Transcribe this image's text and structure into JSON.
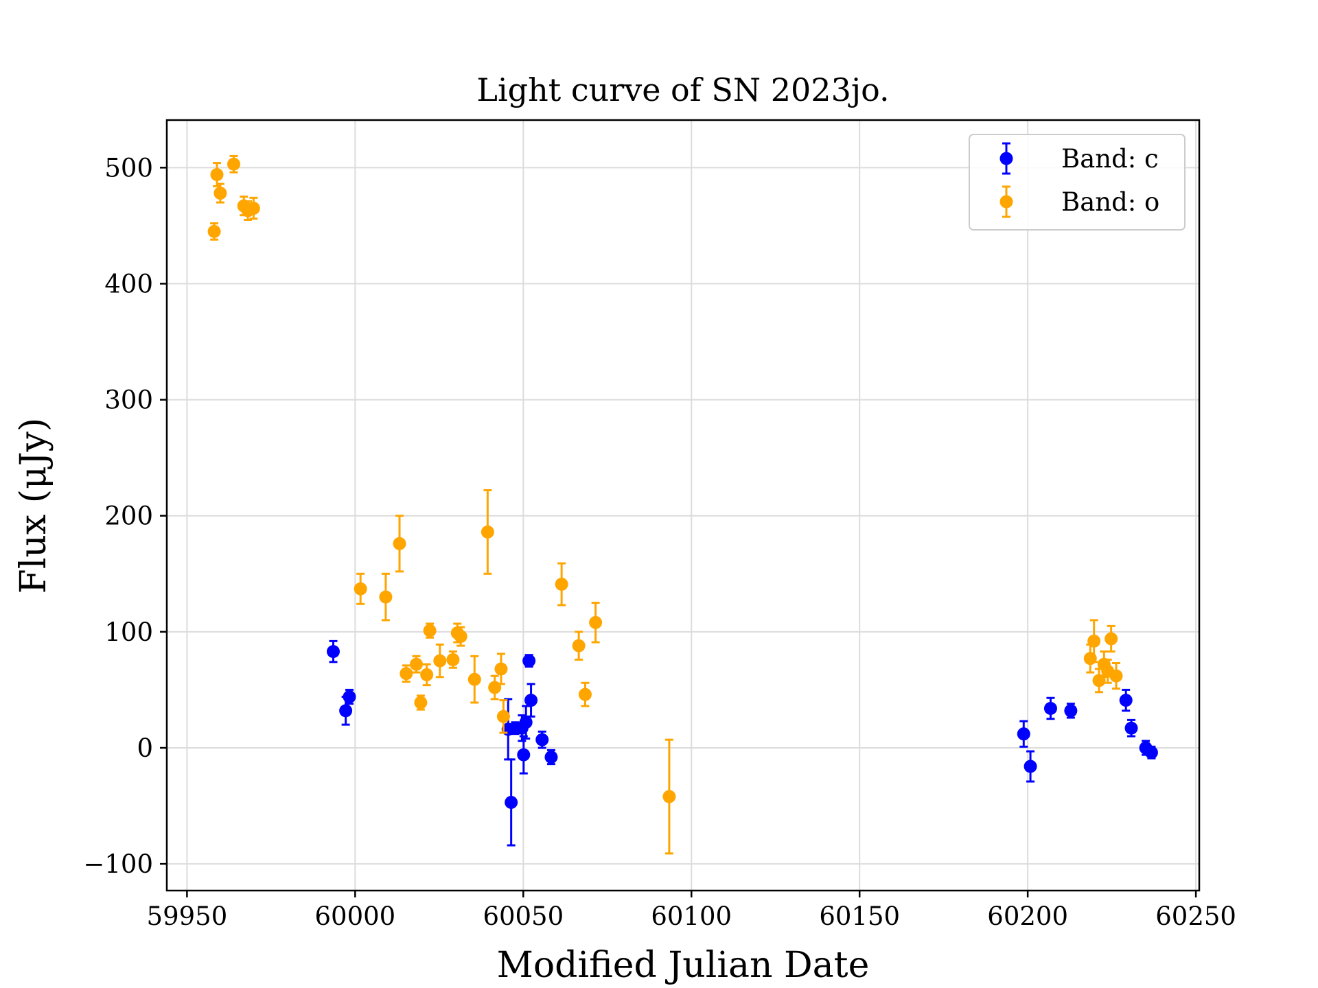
{
  "chart_data": {
    "type": "scatter",
    "title": "Light curve of SN 2023jo.",
    "xlabel": "Modified Julian Date",
    "ylabel": "Flux (μJy)",
    "xlim": [
      59944,
      60251
    ],
    "ylim": [
      -123,
      541
    ],
    "xticks": [
      59950,
      60000,
      60050,
      60100,
      60150,
      60200,
      60250
    ],
    "yticks": [
      -100,
      0,
      100,
      200,
      300,
      400,
      500
    ],
    "xtick_labels": [
      "59950",
      "60000",
      "60050",
      "60100",
      "60150",
      "60200",
      "60250"
    ],
    "ytick_labels": [
      "−100",
      "0",
      "100",
      "200",
      "300",
      "400",
      "500"
    ],
    "grid": true,
    "legend_position": "top-right",
    "error_bars": true,
    "series": [
      {
        "name": "Band: c",
        "color": "#0000ff",
        "points": [
          {
            "x": 59993.5,
            "y": 83,
            "err": 9
          },
          {
            "x": 59997.2,
            "y": 32,
            "err": 12
          },
          {
            "x": 59998.3,
            "y": 44,
            "err": 6
          },
          {
            "x": 60045.5,
            "y": 16,
            "err": 26
          },
          {
            "x": 60046.4,
            "y": -47,
            "err": 37
          },
          {
            "x": 60047.6,
            "y": 17,
            "err": 5
          },
          {
            "x": 60049.6,
            "y": 17,
            "err": 11
          },
          {
            "x": 60050.1,
            "y": -6,
            "err": 16
          },
          {
            "x": 60050.8,
            "y": 22,
            "err": 14
          },
          {
            "x": 60051.7,
            "y": 75,
            "err": 5
          },
          {
            "x": 60052.3,
            "y": 41,
            "err": 14
          },
          {
            "x": 60055.6,
            "y": 7,
            "err": 7
          },
          {
            "x": 60058.3,
            "y": -8,
            "err": 6
          },
          {
            "x": 60198.8,
            "y": 12,
            "err": 11
          },
          {
            "x": 60200.8,
            "y": -16,
            "err": 13
          },
          {
            "x": 60206.8,
            "y": 34,
            "err": 9
          },
          {
            "x": 60212.8,
            "y": 32,
            "err": 6
          },
          {
            "x": 60229.2,
            "y": 41,
            "err": 9
          },
          {
            "x": 60230.8,
            "y": 17,
            "err": 7
          },
          {
            "x": 60235.1,
            "y": 0,
            "err": 6
          },
          {
            "x": 60236.8,
            "y": -4,
            "err": 5
          }
        ]
      },
      {
        "name": "Band: o",
        "color": "#ffa500",
        "points": [
          {
            "x": 59958.1,
            "y": 445,
            "err": 7
          },
          {
            "x": 59958.9,
            "y": 494,
            "err": 10
          },
          {
            "x": 59959.9,
            "y": 478,
            "err": 8
          },
          {
            "x": 59963.9,
            "y": 503,
            "err": 7
          },
          {
            "x": 59966.9,
            "y": 467,
            "err": 8
          },
          {
            "x": 59968.1,
            "y": 463,
            "err": 8
          },
          {
            "x": 59969.8,
            "y": 465,
            "err": 9
          },
          {
            "x": 60001.6,
            "y": 137,
            "err": 13
          },
          {
            "x": 60009.1,
            "y": 130,
            "err": 20
          },
          {
            "x": 60013.2,
            "y": 176,
            "err": 24
          },
          {
            "x": 60015.2,
            "y": 64,
            "err": 7
          },
          {
            "x": 60018.2,
            "y": 72,
            "err": 7
          },
          {
            "x": 60019.5,
            "y": 39,
            "err": 6
          },
          {
            "x": 60021.3,
            "y": 63,
            "err": 9
          },
          {
            "x": 60022.2,
            "y": 101,
            "err": 6
          },
          {
            "x": 60025.2,
            "y": 75,
            "err": 14
          },
          {
            "x": 60029.1,
            "y": 76,
            "err": 7
          },
          {
            "x": 60030.4,
            "y": 99,
            "err": 8
          },
          {
            "x": 60031.4,
            "y": 96,
            "err": 8
          },
          {
            "x": 60035.5,
            "y": 59,
            "err": 20
          },
          {
            "x": 60039.4,
            "y": 186,
            "err": 36
          },
          {
            "x": 60041.5,
            "y": 52,
            "err": 10
          },
          {
            "x": 60043.4,
            "y": 68,
            "err": 13
          },
          {
            "x": 60044.1,
            "y": 27,
            "err": 14
          },
          {
            "x": 60061.4,
            "y": 141,
            "err": 18
          },
          {
            "x": 60066.5,
            "y": 88,
            "err": 12
          },
          {
            "x": 60068.4,
            "y": 46,
            "err": 10
          },
          {
            "x": 60071.5,
            "y": 108,
            "err": 17
          },
          {
            "x": 60093.4,
            "y": -42,
            "err": 49
          },
          {
            "x": 60218.6,
            "y": 77,
            "err": 12
          },
          {
            "x": 60219.7,
            "y": 92,
            "err": 18
          },
          {
            "x": 60221.2,
            "y": 58,
            "err": 10
          },
          {
            "x": 60222.7,
            "y": 72,
            "err": 11
          },
          {
            "x": 60223.8,
            "y": 66,
            "err": 10
          },
          {
            "x": 60224.8,
            "y": 94,
            "err": 11
          },
          {
            "x": 60226.3,
            "y": 62,
            "err": 11
          }
        ]
      }
    ]
  }
}
